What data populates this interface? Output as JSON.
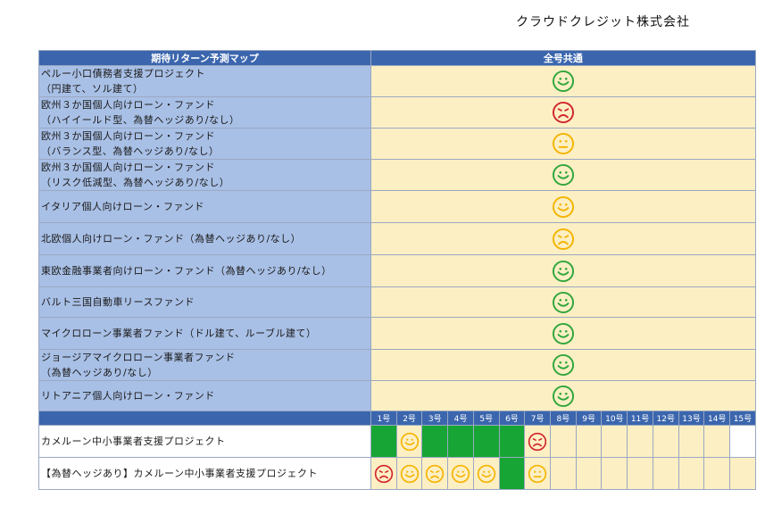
{
  "company": "クラウドクレジット株式会社",
  "header": {
    "left": "期待リターン予測マップ",
    "right": "全号共通"
  },
  "colors": {
    "green": "#2fa63c",
    "red": "#d0262c",
    "yellow": "#f4b400",
    "fill": "#fdefc4",
    "header": "#3b66ae",
    "label": "#a9c0e6"
  },
  "common_rows": [
    {
      "lines": [
        "ペルー小口債務者支援プロジェクト",
        "（円建て、ソル建て）"
      ],
      "face": "smile-green"
    },
    {
      "lines": [
        "欧州３か国個人向けローン・ファンド",
        "（ハイイールド型、為替ヘッジあり/なし）"
      ],
      "face": "frown-red"
    },
    {
      "lines": [
        "欧州３か国個人向けローン・ファンド",
        "（バランス型、為替ヘッジあり/なし）"
      ],
      "face": "neutral-yellow"
    },
    {
      "lines": [
        "欧州３か国個人向けローン・ファンド",
        "（リスク低減型、為替ヘッジあり/なし）"
      ],
      "face": "smile-green"
    },
    {
      "lines": [
        "イタリア個人向けローン・ファンド"
      ],
      "face": "smile-yellow"
    },
    {
      "lines": [
        "北欧個人向けローン・ファンド（為替ヘッジあり/なし）"
      ],
      "face": "frown-yellow"
    },
    {
      "lines": [
        "東欧金融事業者向けローン・ファンド（為替ヘッジあり/なし）"
      ],
      "face": "smile-green"
    },
    {
      "lines": [
        "バルト三国自動車リースファンド"
      ],
      "face": "smile-green"
    },
    {
      "lines": [
        "マイクロローン事業者ファンド（ドル建て、ルーブル建て）"
      ],
      "face": "smile-green"
    },
    {
      "lines": [
        "ジョージアマイクロローン事業者ファンド",
        "（為替ヘッジあり/なし）"
      ],
      "face": "smile-green"
    },
    {
      "lines": [
        "リトアニア個人向けローン・ファンド"
      ],
      "face": "smile-green"
    }
  ],
  "issue_numbers": [
    "1号",
    "2号",
    "3号",
    "4号",
    "5号",
    "6号",
    "7号",
    "8号",
    "9号",
    "10号",
    "11号",
    "12号",
    "13号",
    "14号",
    "15号"
  ],
  "issue_rows": [
    {
      "label": "カメルーン中小事業者支援プロジェクト",
      "cells": [
        {
          "bg": "g"
        },
        {
          "bg": "y",
          "face": "smile-yellow"
        },
        {
          "bg": "g"
        },
        {
          "bg": "g"
        },
        {
          "bg": "g"
        },
        {
          "bg": "g"
        },
        {
          "bg": "y",
          "face": "frown-red"
        },
        {
          "bg": "y"
        },
        {
          "bg": "y"
        },
        {
          "bg": "y"
        },
        {
          "bg": "y"
        },
        {
          "bg": "y"
        },
        {
          "bg": "y"
        },
        {
          "bg": "y"
        },
        {
          "bg": "w"
        }
      ]
    },
    {
      "label": "【為替ヘッジあり】カメルーン中小事業者支援プロジェクト",
      "cells": [
        {
          "bg": "y",
          "face": "frown-red"
        },
        {
          "bg": "y",
          "face": "smile-yellow"
        },
        {
          "bg": "y",
          "face": "frown-yellow"
        },
        {
          "bg": "y",
          "face": "smile-yellow"
        },
        {
          "bg": "y",
          "face": "smile-yellow"
        },
        {
          "bg": "g"
        },
        {
          "bg": "y",
          "face": "neutral-yellow"
        },
        {
          "bg": "y"
        },
        {
          "bg": "y"
        },
        {
          "bg": "y"
        },
        {
          "bg": "y"
        },
        {
          "bg": "y"
        },
        {
          "bg": "y"
        },
        {
          "bg": "y"
        },
        {
          "bg": "y"
        }
      ]
    }
  ]
}
